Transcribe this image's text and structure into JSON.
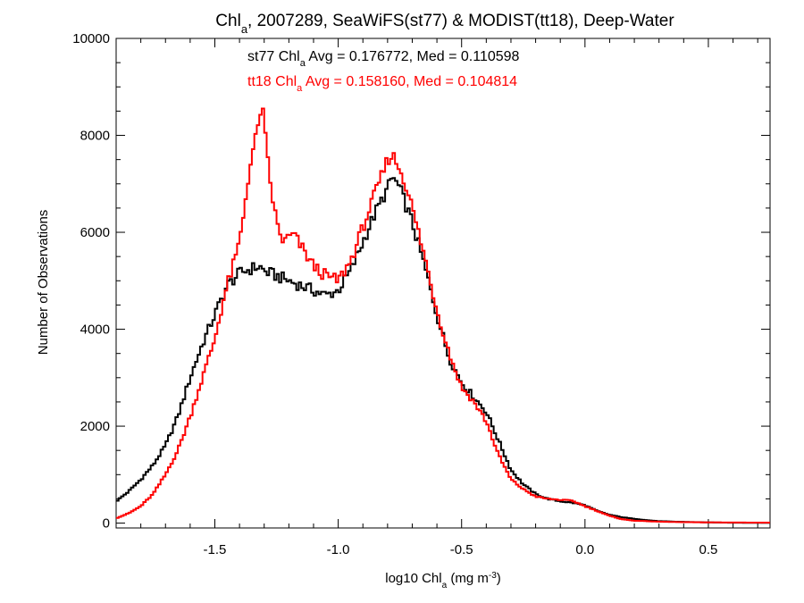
{
  "chart_data": {
    "type": "line",
    "step": true,
    "title": {
      "prefix": "Chl",
      "sub": "a",
      "rest": ", 2007289, SeaWiFS(st77) & MODIST(tt18), Deep-Water"
    },
    "xlabel": {
      "prefix": "log10 Chl",
      "sub": "a",
      "mid": " (mg m",
      "sup": "-3",
      "suffix": ")"
    },
    "ylabel": "Number of Observations",
    "xlim": [
      -1.9,
      0.75
    ],
    "ylim": [
      -100,
      10000
    ],
    "xticks": [
      -1.5,
      -1.0,
      -0.5,
      0.0,
      0.5
    ],
    "xtick_labels": [
      "-1.5",
      "-1.0",
      "-0.5",
      "0.0",
      "0.5"
    ],
    "yticks": [
      0,
      2000,
      4000,
      6000,
      8000,
      10000
    ],
    "ytick_labels": [
      "0",
      "2000",
      "4000",
      "6000",
      "8000",
      "10000"
    ],
    "grid": false,
    "annotations": [
      {
        "prefix": "st77 Chl",
        "sub": "a",
        "rest": " Avg = 0.176772, Med = 0.110598",
        "color": "#000000"
      },
      {
        "prefix": "tt18 Chl",
        "sub": "a",
        "rest": " Avg = 0.158160, Med = 0.104814",
        "color": "#ff0000"
      }
    ],
    "series": [
      {
        "id": "st77",
        "color": "#000000",
        "x": [
          -1.9,
          -1.85,
          -1.8,
          -1.75,
          -1.7,
          -1.65,
          -1.6,
          -1.55,
          -1.5,
          -1.45,
          -1.4,
          -1.38,
          -1.35,
          -1.32,
          -1.3,
          -1.25,
          -1.2,
          -1.15,
          -1.1,
          -1.05,
          -1.0,
          -0.95,
          -0.9,
          -0.85,
          -0.8,
          -0.78,
          -0.75,
          -0.7,
          -0.65,
          -0.6,
          -0.55,
          -0.5,
          -0.45,
          -0.4,
          -0.35,
          -0.3,
          -0.25,
          -0.2,
          -0.15,
          -0.1,
          -0.05,
          0.0,
          0.05,
          0.1,
          0.15,
          0.2,
          0.25,
          0.3,
          0.4,
          0.5,
          0.6,
          0.75
        ],
        "y": [
          450,
          650,
          900,
          1200,
          1600,
          2200,
          3000,
          3700,
          4300,
          4900,
          5150,
          5200,
          5250,
          5300,
          5200,
          5100,
          5000,
          4900,
          4800,
          4700,
          4800,
          5200,
          5800,
          6400,
          6900,
          7150,
          6900,
          6200,
          5300,
          4300,
          3400,
          2900,
          2600,
          2300,
          1700,
          1100,
          800,
          600,
          500,
          450,
          420,
          370,
          250,
          170,
          120,
          90,
          60,
          40,
          25,
          15,
          8,
          5
        ]
      },
      {
        "id": "tt18",
        "color": "#ff0000",
        "x": [
          -1.9,
          -1.85,
          -1.8,
          -1.75,
          -1.7,
          -1.65,
          -1.6,
          -1.55,
          -1.5,
          -1.47,
          -1.45,
          -1.42,
          -1.4,
          -1.38,
          -1.36,
          -1.34,
          -1.32,
          -1.31,
          -1.3,
          -1.28,
          -1.26,
          -1.24,
          -1.22,
          -1.2,
          -1.18,
          -1.15,
          -1.1,
          -1.05,
          -1.0,
          -0.95,
          -0.9,
          -0.85,
          -0.8,
          -0.78,
          -0.75,
          -0.72,
          -0.7,
          -0.65,
          -0.6,
          -0.55,
          -0.5,
          -0.45,
          -0.4,
          -0.35,
          -0.3,
          -0.25,
          -0.2,
          -0.15,
          -0.1,
          -0.05,
          0.0,
          0.05,
          0.1,
          0.15,
          0.2,
          0.3,
          0.4,
          0.5,
          0.75
        ],
        "y": [
          100,
          200,
          350,
          600,
          1000,
          1500,
          2200,
          3000,
          3800,
          4500,
          4900,
          5400,
          5800,
          6500,
          7300,
          7800,
          8300,
          8700,
          8200,
          7200,
          6500,
          6000,
          5800,
          5900,
          5950,
          5700,
          5300,
          5100,
          5000,
          5400,
          6100,
          6800,
          7500,
          7600,
          7300,
          6900,
          6500,
          5500,
          4400,
          3500,
          2800,
          2500,
          2100,
          1400,
          900,
          700,
          550,
          500,
          480,
          460,
          350,
          250,
          150,
          80,
          50,
          30,
          20,
          15,
          10
        ]
      }
    ]
  }
}
